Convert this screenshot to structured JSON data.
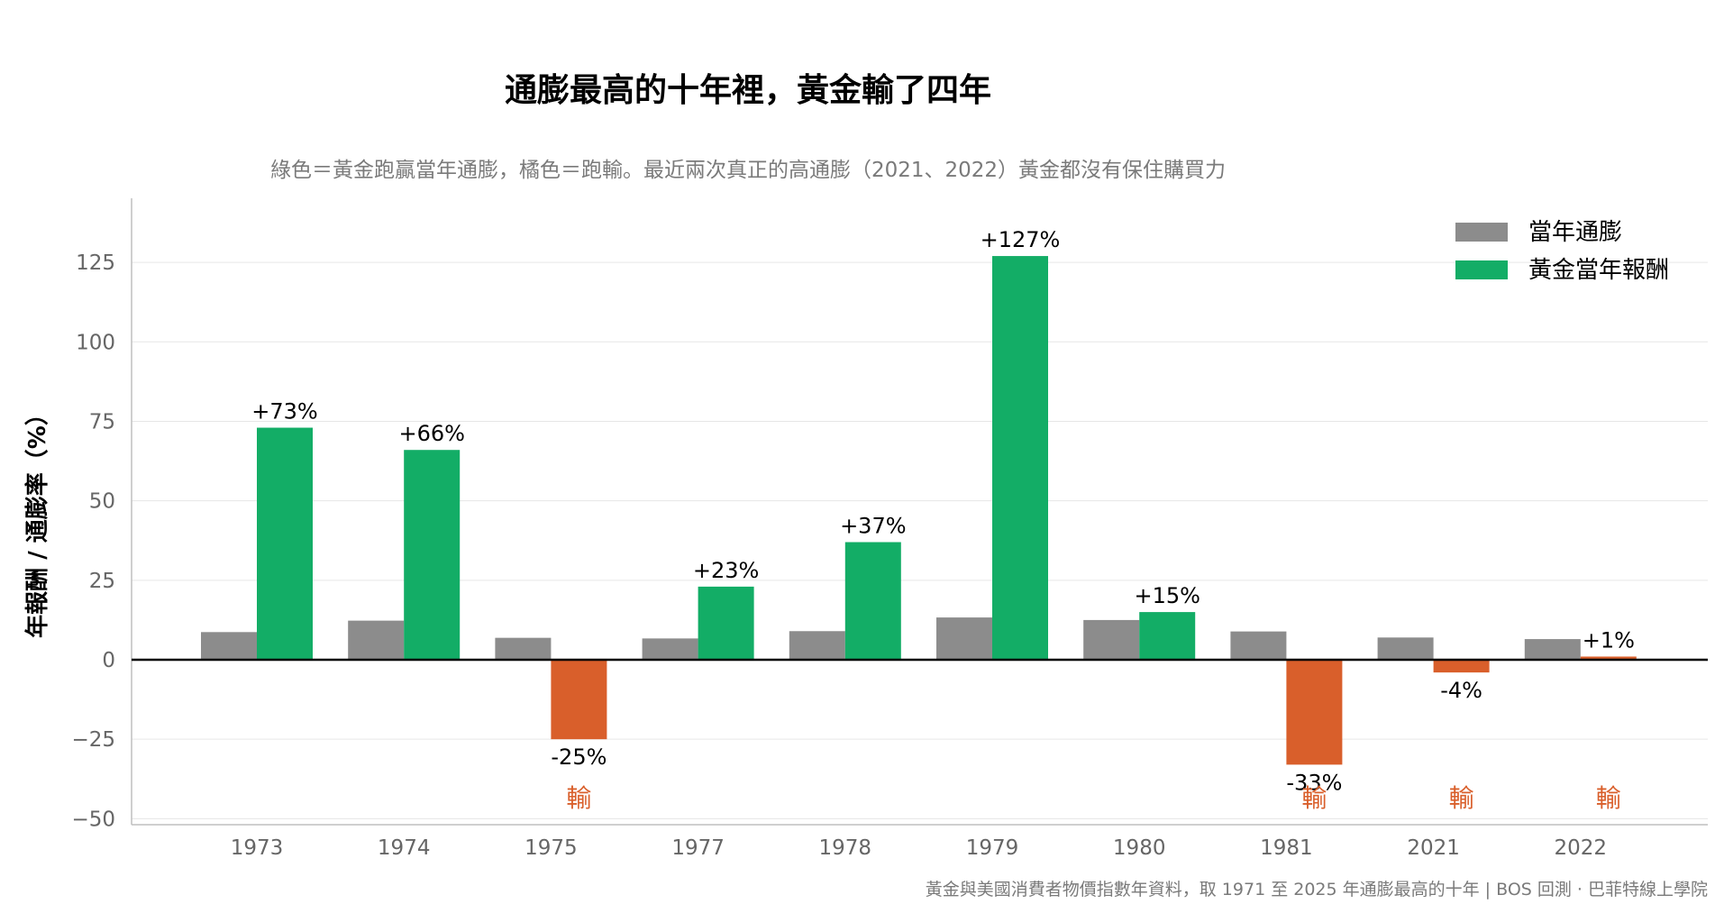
{
  "chart_data": {
    "type": "bar",
    "title": "通膨最高的十年裡，黃金輸了四年",
    "subtitle": "綠色＝黃金跑贏當年通膨，橘色＝跑輸。最近兩次真正的高通膨（2021、2022）黃金都沒有保住購買力",
    "xlabel": "",
    "ylabel": "年報酬 / 通膨率（%）",
    "categories": [
      "1973",
      "1974",
      "1975",
      "1977",
      "1978",
      "1979",
      "1980",
      "1981",
      "2021",
      "2022"
    ],
    "series": [
      {
        "name": "當年通膨",
        "values": [
          8.7,
          12.3,
          6.9,
          6.7,
          9.0,
          13.3,
          12.5,
          8.9,
          7.0,
          6.5
        ]
      },
      {
        "name": "黃金當年報酬",
        "values": [
          73,
          66,
          -25,
          23,
          37,
          127,
          15,
          -33,
          -4,
          1
        ]
      }
    ],
    "data_labels": [
      "+73%",
      "+66%",
      "-25%",
      "+23%",
      "+37%",
      "+127%",
      "+15%",
      "-33%",
      "-4%",
      "+1%"
    ],
    "lose_marker": "輸",
    "lose_flags": [
      false,
      false,
      true,
      false,
      false,
      false,
      false,
      true,
      true,
      true
    ],
    "ylim": [
      -51,
      145
    ],
    "yticks": [
      125,
      100,
      75,
      50,
      25,
      0,
      -25,
      -50
    ],
    "ytick_labels": [
      "125",
      "100",
      "75",
      "50",
      "25",
      "0",
      "−25",
      "−50"
    ],
    "legend_position": "top-right",
    "grid": true,
    "source": "黃金與美國消費者物價指數年資料，取 1971 至 2025 年通膨最高的十年 | BOS 回測 · 巴菲特線上學院",
    "colors": {
      "inflation": "#8c8c8c",
      "gold_win": "#13ad66",
      "gold_lose": "#d95f2b",
      "lose_text": "#d95f2b",
      "grid": "#e6e6e6",
      "axis": "#bfbfbf",
      "zero_line": "#000000",
      "title": "#000000",
      "subtitle": "#7a7a7a",
      "tick_label": "#666666",
      "source_text": "#7a7a7a"
    }
  }
}
